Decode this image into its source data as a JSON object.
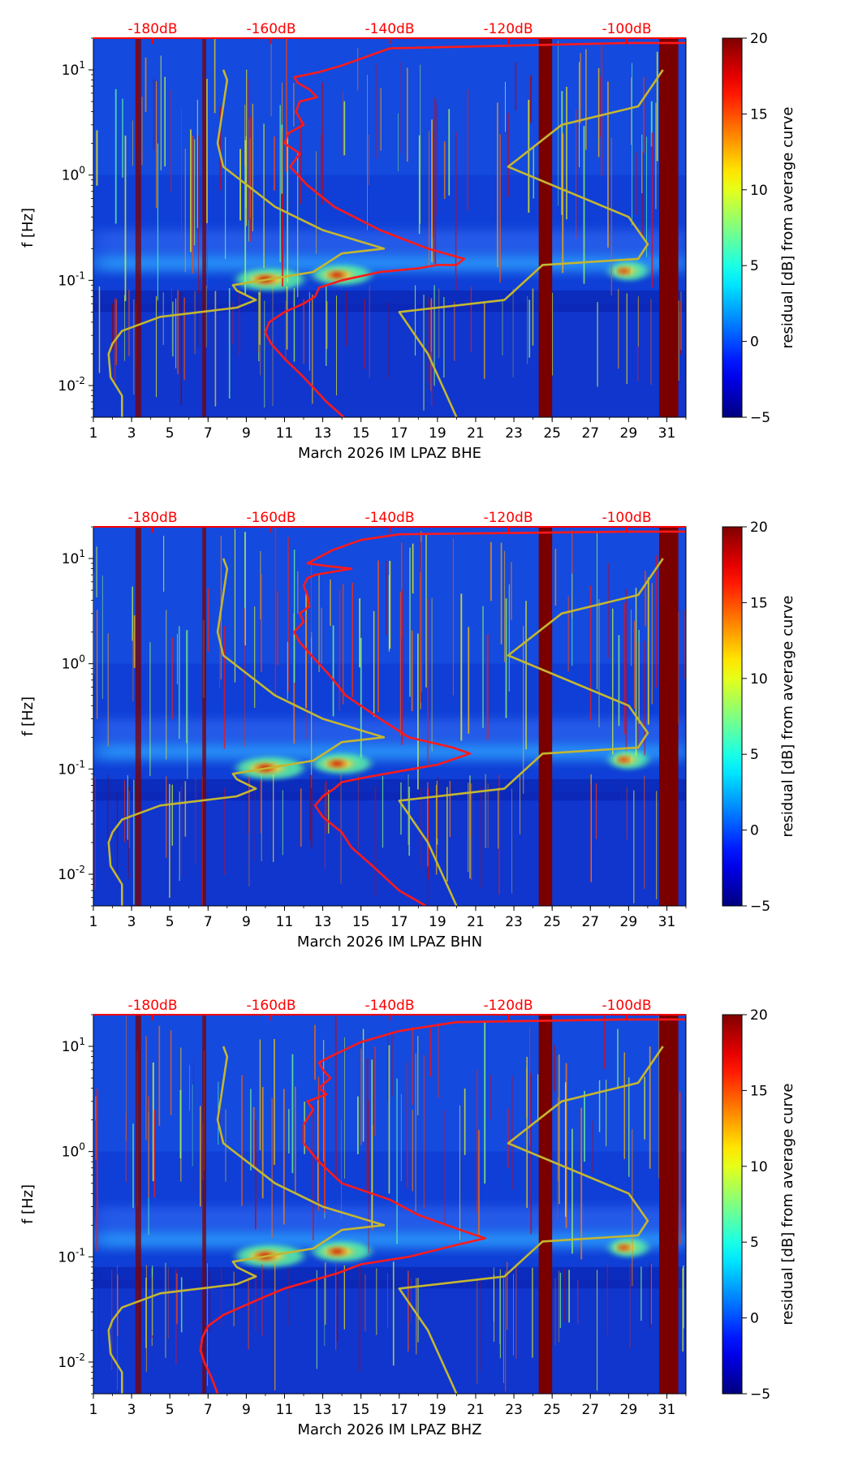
{
  "colorbar": {
    "label": "residual [dB] from average curve",
    "ticks": [
      -5,
      0,
      5,
      10,
      15,
      20
    ],
    "range": [
      -5,
      20
    ],
    "colormap": "jet"
  },
  "colors": {
    "background_field": "#0f3fd6",
    "dark_band": "#7a0000",
    "yellow_curve": "#c4b631",
    "red_curve": "#ff1a1a",
    "top_axis_text": "#ff0000"
  },
  "chart_data": [
    {
      "type": "heatmap",
      "channel": "BHE",
      "xlabel": "March 2026 IM LPAZ  BHE",
      "ylabel": "f [Hz]",
      "x_ticks": [
        "1",
        "3",
        "5",
        "7",
        "9",
        "11",
        "13",
        "15",
        "17",
        "19",
        "21",
        "23",
        "25",
        "27",
        "29",
        "31"
      ],
      "xlim": [
        1,
        32
      ],
      "ylim": [
        0.005,
        20
      ],
      "yscale": "log",
      "y_ticks": [
        "10^-2",
        "10^-1",
        "10^0",
        "10^1"
      ],
      "top_axis": {
        "ticks": [
          "-180dB",
          "-160dB",
          "-140dB",
          "-120dB",
          "-100dB"
        ],
        "values": [
          -180,
          -160,
          -140,
          -120,
          -100
        ],
        "range": [
          -190,
          -90
        ]
      },
      "dark_bands": [
        [
          3.2,
          3.5
        ],
        [
          6.7,
          6.9
        ],
        [
          24.3,
          25.0
        ],
        [
          30.6,
          31.6
        ]
      ],
      "features": [
        {
          "name": "microseism-band",
          "x": [
            1,
            32
          ],
          "f": [
            0.12,
            0.18
          ]
        },
        {
          "name": "storm-1",
          "x": [
            8.5,
            12
          ],
          "f": [
            0.08,
            0.13
          ]
        },
        {
          "name": "storm-2",
          "x": [
            12.5,
            15.5
          ],
          "f": [
            0.09,
            0.14
          ]
        },
        {
          "name": "storm-3",
          "x": [
            28,
            30
          ],
          "f": [
            0.1,
            0.15
          ]
        }
      ],
      "series": [
        {
          "kind": "low-noise-model",
          "x": [
            2.5,
            2.5,
            1.9,
            1.8,
            2.0,
            2.5,
            4.5,
            8.5,
            9.5,
            8.5,
            8.3,
            12.5,
            14.0,
            16.2,
            13.0,
            10.5,
            7.8,
            7.5,
            8.0,
            7.8
          ],
          "f": [
            0.005,
            0.008,
            0.012,
            0.02,
            0.025,
            0.033,
            0.045,
            0.055,
            0.065,
            0.08,
            0.09,
            0.12,
            0.18,
            0.2,
            0.3,
            0.5,
            1.2,
            2.0,
            8.0,
            10.0
          ]
        },
        {
          "kind": "high-noise-model",
          "x": [
            20.0,
            18.5,
            17.0,
            22.5,
            24.5,
            29.5,
            30.0,
            29.0,
            22.7,
            25.5,
            29.5,
            30.8
          ],
          "f": [
            0.005,
            0.02,
            0.05,
            0.065,
            0.14,
            0.16,
            0.22,
            0.4,
            1.2,
            3.0,
            4.5,
            10.0
          ]
        },
        {
          "kind": "station-psd",
          "x": [
            14.1,
            13.2,
            12.0,
            11.0,
            10.3,
            10.0,
            10.2,
            11.0,
            12.0,
            12.6,
            12.8,
            14.0,
            16.0,
            18.0,
            19.0,
            20.0,
            20.4,
            18.5,
            16.0,
            13.6,
            12.2,
            11.3,
            11.8,
            11.0,
            11.2,
            12.0,
            11.6,
            11.8,
            12.7,
            12.3,
            11.7,
            11.5,
            12.8,
            14.0,
            16.5,
            29.0,
            32.0
          ],
          "f": [
            0.005,
            0.007,
            0.012,
            0.018,
            0.025,
            0.032,
            0.04,
            0.05,
            0.06,
            0.07,
            0.085,
            0.1,
            0.12,
            0.13,
            0.14,
            0.14,
            0.16,
            0.2,
            0.3,
            0.5,
            0.8,
            1.2,
            1.6,
            2.0,
            2.5,
            3.0,
            4.0,
            5.0,
            5.5,
            6.5,
            7.5,
            8.5,
            9.5,
            11.0,
            16.0,
            18.0,
            18.0
          ]
        }
      ]
    },
    {
      "type": "heatmap",
      "channel": "BHN",
      "xlabel": "March 2026 IM LPAZ  BHN",
      "ylabel": "f [Hz]",
      "x_ticks": [
        "1",
        "3",
        "5",
        "7",
        "9",
        "11",
        "13",
        "15",
        "17",
        "19",
        "21",
        "23",
        "25",
        "27",
        "29",
        "31"
      ],
      "xlim": [
        1,
        32
      ],
      "ylim": [
        0.005,
        20
      ],
      "yscale": "log",
      "y_ticks": [
        "10^-2",
        "10^-1",
        "10^0",
        "10^1"
      ],
      "top_axis": {
        "ticks": [
          "-180dB",
          "-160dB",
          "-140dB",
          "-120dB",
          "-100dB"
        ],
        "values": [
          -180,
          -160,
          -140,
          -120,
          -100
        ],
        "range": [
          -190,
          -90
        ]
      },
      "dark_bands": [
        [
          3.2,
          3.5
        ],
        [
          6.7,
          6.9
        ],
        [
          24.3,
          25.0
        ],
        [
          30.6,
          31.6
        ]
      ],
      "features": [
        {
          "name": "microseism-band",
          "x": [
            1,
            32
          ],
          "f": [
            0.12,
            0.18
          ]
        },
        {
          "name": "storm-1",
          "x": [
            8.5,
            12
          ],
          "f": [
            0.08,
            0.13
          ]
        },
        {
          "name": "storm-2",
          "x": [
            12.5,
            15.5
          ],
          "f": [
            0.09,
            0.14
          ]
        },
        {
          "name": "storm-3",
          "x": [
            28,
            30
          ],
          "f": [
            0.1,
            0.15
          ]
        }
      ],
      "series": [
        {
          "kind": "low-noise-model",
          "x": [
            2.5,
            2.5,
            1.9,
            1.8,
            2.0,
            2.5,
            4.5,
            8.5,
            9.5,
            8.5,
            8.3,
            12.5,
            14.0,
            16.2,
            13.0,
            10.5,
            7.8,
            7.5,
            8.0,
            7.8
          ],
          "f": [
            0.005,
            0.008,
            0.012,
            0.02,
            0.025,
            0.033,
            0.045,
            0.055,
            0.065,
            0.08,
            0.09,
            0.12,
            0.18,
            0.2,
            0.3,
            0.5,
            1.2,
            2.0,
            8.0,
            10.0
          ]
        },
        {
          "kind": "high-noise-model",
          "x": [
            20.0,
            18.5,
            17.0,
            22.5,
            24.5,
            29.5,
            30.0,
            29.0,
            22.7,
            25.5,
            29.5,
            30.8
          ],
          "f": [
            0.005,
            0.02,
            0.05,
            0.065,
            0.14,
            0.16,
            0.22,
            0.4,
            1.2,
            3.0,
            4.5,
            10.0
          ]
        },
        {
          "kind": "station-psd",
          "x": [
            18.4,
            17.0,
            15.6,
            14.5,
            14.0,
            13.0,
            12.6,
            13.0,
            13.6,
            14.0,
            15.5,
            17.0,
            19.0,
            20.7,
            19.8,
            17.5,
            16.0,
            14.2,
            13.3,
            12.4,
            11.8,
            11.5,
            12.0,
            11.8,
            12.3,
            12.2,
            12.0,
            12.2,
            12.6,
            14.5,
            13.2,
            12.2,
            13.5,
            15.0,
            17.0,
            29.0,
            32.0
          ],
          "f": [
            0.005,
            0.007,
            0.012,
            0.018,
            0.025,
            0.035,
            0.045,
            0.055,
            0.065,
            0.075,
            0.085,
            0.095,
            0.11,
            0.14,
            0.16,
            0.2,
            0.3,
            0.5,
            0.8,
            1.2,
            1.6,
            2.0,
            2.5,
            3.0,
            3.5,
            4.5,
            5.5,
            6.5,
            7.0,
            8.0,
            8.5,
            9.0,
            12.0,
            15.0,
            17.0,
            18.0,
            18.0
          ]
        }
      ]
    },
    {
      "type": "heatmap",
      "channel": "BHZ",
      "xlabel": "March 2026 IM LPAZ  BHZ",
      "ylabel": "f [Hz]",
      "x_ticks": [
        "1",
        "3",
        "5",
        "7",
        "9",
        "11",
        "13",
        "15",
        "17",
        "19",
        "21",
        "23",
        "25",
        "27",
        "29",
        "31"
      ],
      "xlim": [
        1,
        32
      ],
      "ylim": [
        0.005,
        20
      ],
      "yscale": "log",
      "y_ticks": [
        "10^-2",
        "10^-1",
        "10^0",
        "10^1"
      ],
      "top_axis": {
        "ticks": [
          "-180dB",
          "-160dB",
          "-140dB",
          "-120dB",
          "-100dB"
        ],
        "values": [
          -180,
          -160,
          -140,
          -120,
          -100
        ],
        "range": [
          -190,
          -90
        ]
      },
      "dark_bands": [
        [
          3.2,
          3.5
        ],
        [
          6.7,
          6.9
        ],
        [
          24.3,
          25.0
        ],
        [
          30.6,
          31.6
        ]
      ],
      "features": [
        {
          "name": "microseism-band",
          "x": [
            1,
            32
          ],
          "f": [
            0.12,
            0.18
          ]
        },
        {
          "name": "storm-1",
          "x": [
            8.5,
            12
          ],
          "f": [
            0.08,
            0.13
          ]
        },
        {
          "name": "storm-2",
          "x": [
            12.5,
            15.5
          ],
          "f": [
            0.09,
            0.14
          ]
        },
        {
          "name": "storm-3",
          "x": [
            28,
            30
          ],
          "f": [
            0.1,
            0.15
          ]
        }
      ],
      "series": [
        {
          "kind": "low-noise-model",
          "x": [
            2.5,
            2.5,
            1.9,
            1.8,
            2.0,
            2.5,
            4.5,
            8.5,
            9.5,
            8.5,
            8.3,
            12.5,
            14.0,
            16.2,
            13.0,
            10.5,
            7.8,
            7.5,
            8.0,
            7.8
          ],
          "f": [
            0.005,
            0.008,
            0.012,
            0.02,
            0.025,
            0.033,
            0.045,
            0.055,
            0.065,
            0.08,
            0.09,
            0.12,
            0.18,
            0.2,
            0.3,
            0.5,
            1.2,
            2.0,
            8.0,
            10.0
          ]
        },
        {
          "kind": "high-noise-model",
          "x": [
            20.0,
            18.5,
            17.0,
            22.5,
            24.5,
            29.5,
            30.0,
            29.0,
            22.7,
            25.5,
            29.5,
            30.8
          ],
          "f": [
            0.005,
            0.02,
            0.05,
            0.065,
            0.14,
            0.16,
            0.22,
            0.4,
            1.2,
            3.0,
            4.5,
            10.0
          ]
        },
        {
          "kind": "station-psd",
          "x": [
            7.5,
            7.2,
            6.8,
            6.6,
            6.7,
            7.0,
            7.8,
            9.0,
            10.0,
            11.0,
            12.5,
            13.8,
            15.0,
            17.5,
            20.0,
            21.5,
            20.2,
            18.0,
            16.5,
            14.0,
            12.8,
            12.0,
            12.0,
            12.5,
            12.2,
            13.2,
            12.8,
            13.4,
            13.0,
            12.8,
            13.4,
            14.0,
            15.0,
            17.0,
            20.0,
            29.0,
            32.0
          ],
          "f": [
            0.005,
            0.007,
            0.01,
            0.013,
            0.017,
            0.022,
            0.028,
            0.035,
            0.042,
            0.05,
            0.06,
            0.07,
            0.085,
            0.1,
            0.13,
            0.15,
            0.18,
            0.25,
            0.35,
            0.5,
            0.8,
            1.2,
            1.8,
            2.5,
            3.0,
            3.5,
            4.0,
            5.0,
            6.0,
            7.0,
            8.0,
            9.0,
            11.0,
            14.0,
            17.0,
            18.0,
            18.0
          ]
        }
      ]
    }
  ]
}
